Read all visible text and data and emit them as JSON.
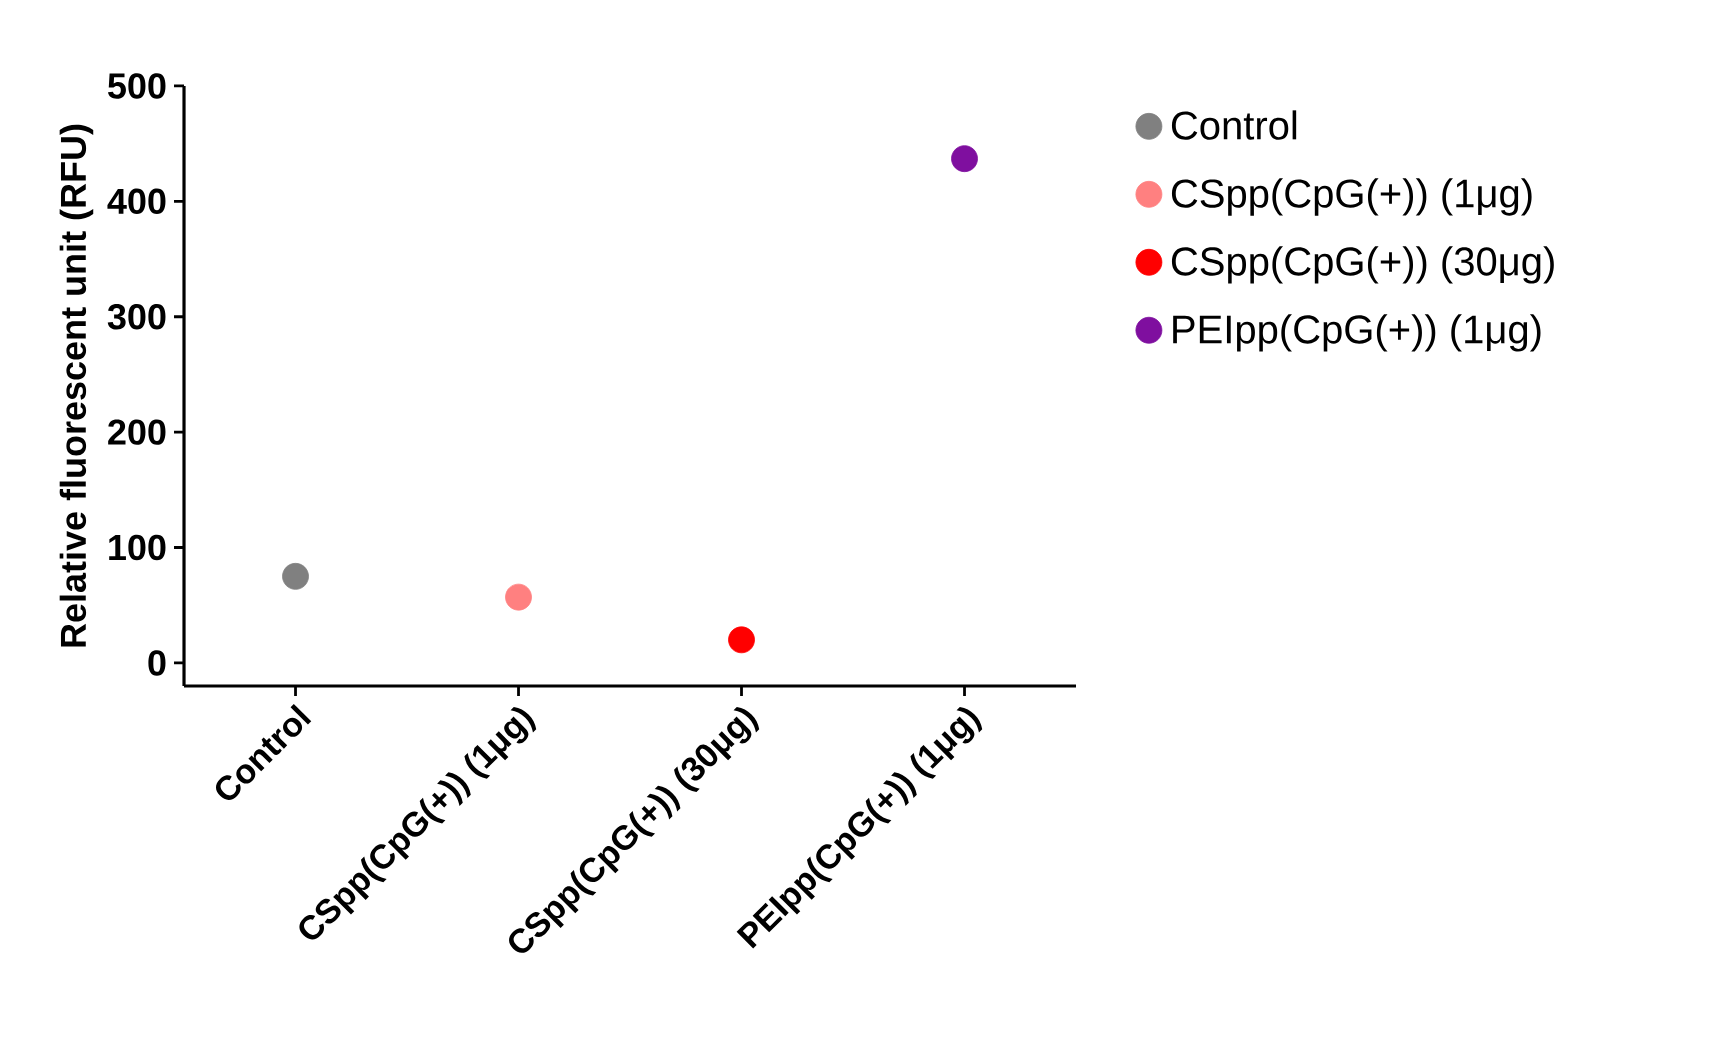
{
  "chart_data": {
    "type": "scatter",
    "ylabel": "Relative fluorescent unit (RFU)",
    "categories": [
      "Control",
      "CSpp(CpG(+)) (1μg)",
      "CSpp(CpG(+)) (30μg)",
      "PEIpp(CpG(+)) (1μg)"
    ],
    "series": [
      {
        "name": "Control",
        "color": "#808080",
        "values": [
          75,
          null,
          null,
          null
        ]
      },
      {
        "name": "CSpp(CpG(+)) (1μg)",
        "color": "#ff8080",
        "values": [
          null,
          57,
          null,
          null
        ]
      },
      {
        "name": "CSpp(CpG(+)) (30μg)",
        "color": "#ff0000",
        "values": [
          null,
          null,
          20,
          null
        ]
      },
      {
        "name": "PEIpp(CpG(+)) (1μg)",
        "color": "#7f0f9f",
        "values": [
          null,
          null,
          null,
          437
        ]
      }
    ],
    "ylim": [
      -20,
      500
    ],
    "yticks": [
      0,
      100,
      200,
      300,
      400,
      500
    ],
    "grid": false,
    "legend": "right"
  }
}
